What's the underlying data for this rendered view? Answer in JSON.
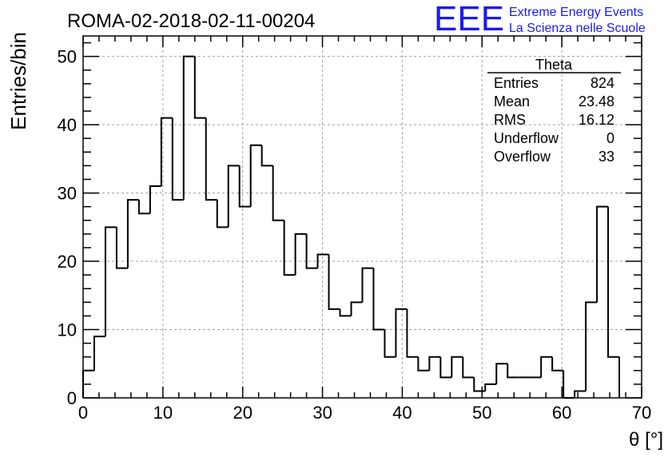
{
  "header": {
    "run_title": "ROMA-02-2018-02-11-00204",
    "logo_text": "EEE",
    "logo_line1": "Extreme Energy Events",
    "logo_line2": "La Scienza nelle Scuole"
  },
  "colors": {
    "logo": "#1a1aee",
    "histogram": "#000000",
    "grid": "#a0a0a0"
  },
  "stats": {
    "title": "Theta",
    "rows": [
      {
        "label": "Entries",
        "value": "824"
      },
      {
        "label": "Mean",
        "value": "23.48"
      },
      {
        "label": "RMS",
        "value": "16.12"
      },
      {
        "label": "Underflow",
        "value": "0"
      },
      {
        "label": "Overflow",
        "value": "33"
      }
    ]
  },
  "chart_data": {
    "type": "histogram",
    "xlabel": "θ [°]",
    "ylabel": "Entries/bin",
    "xlim": [
      0,
      70
    ],
    "ylim": [
      0,
      53
    ],
    "grid": true,
    "x_ticks": [
      0,
      10,
      20,
      30,
      40,
      50,
      60,
      70
    ],
    "y_ticks": [
      0,
      10,
      20,
      30,
      40,
      50
    ],
    "bin_width": 1.4,
    "bin_edges_start": 0,
    "values": [
      4,
      9,
      25,
      19,
      29,
      27,
      31,
      41,
      29,
      50,
      41,
      29,
      25,
      34,
      28,
      37,
      34,
      26,
      18,
      24,
      19,
      21,
      13,
      12,
      14,
      19,
      10,
      6,
      13,
      6,
      4,
      6,
      3,
      6,
      3,
      1,
      2,
      5,
      3,
      3,
      3,
      6,
      4,
      0,
      1,
      14,
      28,
      6
    ]
  }
}
